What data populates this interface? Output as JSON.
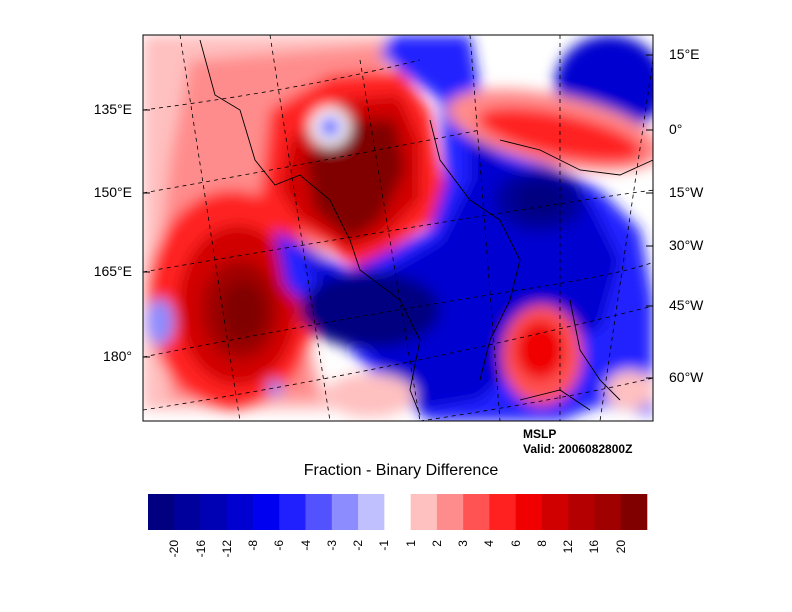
{
  "plot": {
    "variable": "MSLP",
    "valid": "Valid: 2006082800Z",
    "title": "Fraction - Binary Difference",
    "left_axis_labels": [
      "135°E",
      "150°E",
      "165°E",
      "180°"
    ],
    "right_axis_labels": [
      "15°E",
      "0°",
      "15°W",
      "30°W",
      "45°W",
      "60°W"
    ]
  },
  "colorbar": {
    "colors": [
      "#000080",
      "#00009c",
      "#0000b4",
      "#0000d0",
      "#0000f0",
      "#2020ff",
      "#5252ff",
      "#8c8cff",
      "#c0c0ff",
      "#ffffff",
      "#ffc0c0",
      "#ff8c8c",
      "#ff5252",
      "#ff2020",
      "#f00000",
      "#d00000",
      "#b40000",
      "#a00000",
      "#800000"
    ],
    "labels": [
      "-20",
      "-16",
      "-12",
      "-8",
      "-6",
      "-4",
      "-3",
      "-2",
      "-1",
      "1",
      "2",
      "3",
      "4",
      "6",
      "8",
      "12",
      "16",
      "20"
    ]
  }
}
